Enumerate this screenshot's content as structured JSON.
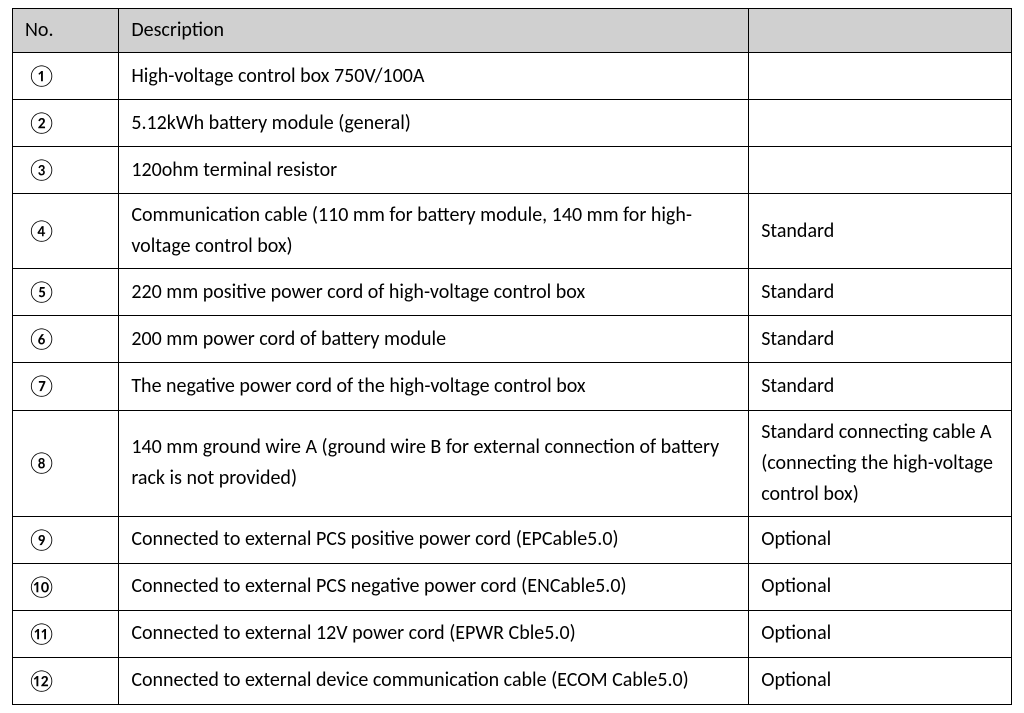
{
  "table": {
    "columns": {
      "no": "No.",
      "desc": "Description",
      "note": ""
    },
    "widths": {
      "no": 106,
      "desc": 628,
      "note": 262
    },
    "header_bg": "#d0d0d0",
    "border_color": "#000000",
    "rows": [
      {
        "no": "①",
        "desc": "High-voltage control box 750V/100A",
        "note": ""
      },
      {
        "no": "②",
        "desc": "5.12kWh battery module (general)",
        "note": ""
      },
      {
        "no": "③",
        "desc": "120ohm terminal resistor",
        "note": ""
      },
      {
        "no": "④",
        "desc": "Communication cable (110 mm for battery module, 140 mm for high-voltage control box)",
        "note": "Standard"
      },
      {
        "no": "⑤",
        "desc": "220 mm positive power cord of high-voltage control box",
        "note": "Standard"
      },
      {
        "no": "⑥",
        "desc": "200 mm power cord of battery module",
        "note": "Standard"
      },
      {
        "no": "⑦",
        "desc": "The negative power cord of the high-voltage control box",
        "note": "Standard"
      },
      {
        "no": "⑧",
        "desc": "140 mm ground wire A (ground wire B for external connection of battery rack is not provided)",
        "note": "Standard connecting cable A (connecting the high-voltage control box)"
      },
      {
        "no": "⑨",
        "desc": "Connected to external PCS positive power cord (EPCable5.0)",
        "note": "Optional"
      },
      {
        "no": "⑩",
        "desc": "Connected to external PCS negative power cord (ENCable5.0)",
        "note": "Optional"
      },
      {
        "no": "⑪",
        "desc": "Connected to external 12V power cord (EPWR Cble5.0)",
        "note": "Optional"
      },
      {
        "no": "⑫",
        "desc": "Connected to external device communication cable (ECOM Cable5.0)",
        "note": "Optional"
      }
    ]
  }
}
